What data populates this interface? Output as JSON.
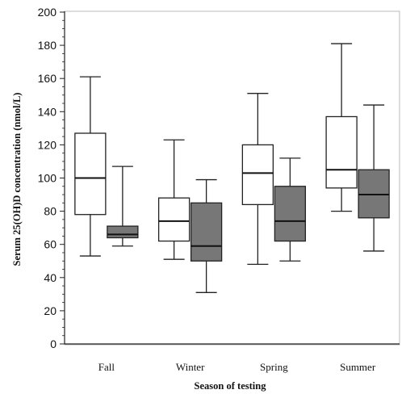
{
  "chart_data": {
    "type": "boxplot",
    "xlabel": "Season of testing",
    "ylabel": "Serum 25(OH)D concentration (nmol/L)",
    "ylim": [
      0,
      200
    ],
    "yticks": [
      "0",
      "20",
      "40",
      "60",
      "80",
      "100",
      "120",
      "140",
      "160",
      "180",
      "200"
    ],
    "categories": [
      "Fall",
      "Winter",
      "Spring",
      "Summer"
    ],
    "grid": false,
    "legend": "none",
    "series": [
      {
        "fill": "#ffffff",
        "boxes": [
          {
            "min": 53,
            "q1": 78,
            "median": 100,
            "q3": 127,
            "max": 161
          },
          {
            "min": 51,
            "q1": 62,
            "median": 74,
            "q3": 88,
            "max": 123
          },
          {
            "min": 48,
            "q1": 84,
            "median": 103,
            "q3": 120,
            "max": 151
          },
          {
            "min": 80,
            "q1": 94,
            "median": 105,
            "q3": 137,
            "max": 181
          }
        ]
      },
      {
        "fill": "#777777",
        "boxes": [
          {
            "min": 59,
            "q1": 64,
            "median": 66,
            "q3": 71,
            "max": 107
          },
          {
            "min": 31,
            "q1": 50,
            "median": 59,
            "q3": 85,
            "max": 99
          },
          {
            "min": 50,
            "q1": 62,
            "median": 74,
            "q3": 95,
            "max": 112
          },
          {
            "min": 56,
            "q1": 76,
            "median": 90,
            "q3": 105,
            "max": 144
          }
        ]
      }
    ]
  }
}
